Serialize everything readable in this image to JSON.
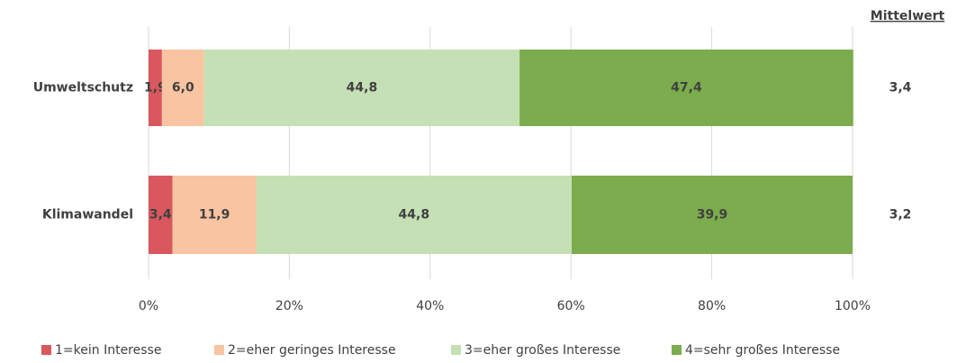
{
  "chart_data": {
    "type": "stacked_barh",
    "categories": [
      "Umweltschutz",
      "Klimawandel"
    ],
    "series": [
      {
        "name": "1=kein Interesse",
        "color": "#d9585f",
        "values": [
          1.9,
          3.4
        ],
        "value_labels": [
          "1,9",
          "3,4"
        ]
      },
      {
        "name": "2=eher geringes Interesse",
        "color": "#f8c4a2",
        "values": [
          6.0,
          11.9
        ],
        "value_labels": [
          "6,0",
          "11,9"
        ]
      },
      {
        "name": "3=eher großes Interesse",
        "color": "#c5e0b4",
        "values": [
          44.8,
          44.8
        ],
        "value_labels": [
          "44,8",
          "44,8"
        ]
      },
      {
        "name": "4=sehr großes Interesse",
        "color": "#7bac4d",
        "values": [
          47.4,
          39.9
        ],
        "value_labels": [
          "47,4",
          "39,9"
        ]
      }
    ],
    "xlim": [
      0,
      100
    ],
    "xticks": [
      {
        "value": 0,
        "label": "0%"
      },
      {
        "value": 20,
        "label": "20%"
      },
      {
        "value": 40,
        "label": "40%"
      },
      {
        "value": 60,
        "label": "60%"
      },
      {
        "value": 80,
        "label": "80%"
      },
      {
        "value": 100,
        "label": "100%"
      }
    ],
    "grid": true,
    "mean_title": "Mittelwert",
    "means": [
      "3,4",
      "3,2"
    ],
    "legend": "bottom"
  }
}
